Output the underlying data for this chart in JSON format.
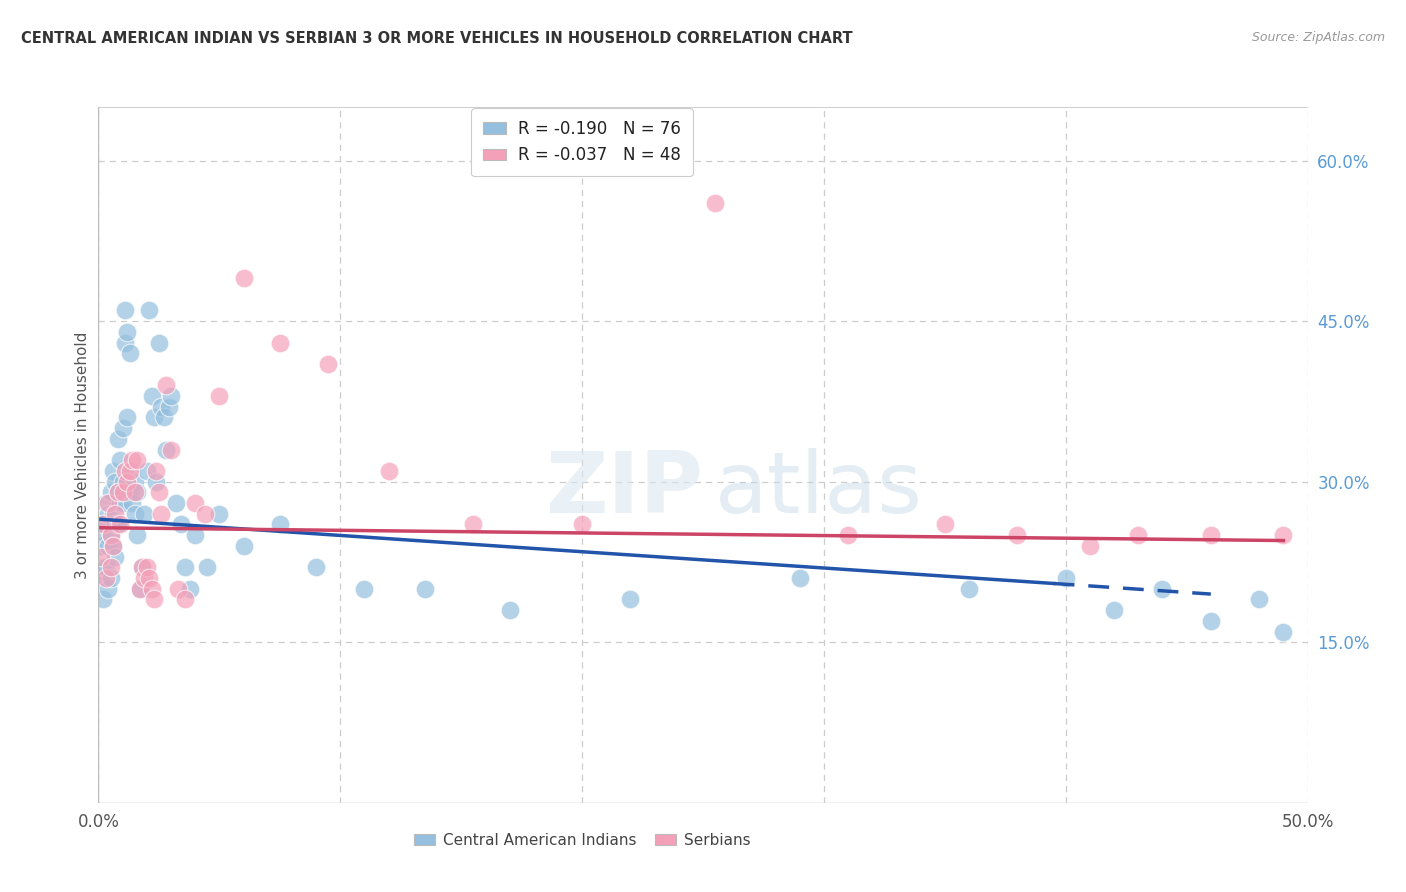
{
  "title": "CENTRAL AMERICAN INDIAN VS SERBIAN 3 OR MORE VEHICLES IN HOUSEHOLD CORRELATION CHART",
  "source": "Source: ZipAtlas.com",
  "ylabel": "3 or more Vehicles in Household",
  "yticks_right": [
    "60.0%",
    "45.0%",
    "30.0%",
    "15.0%"
  ],
  "yticks_right_vals": [
    0.6,
    0.45,
    0.3,
    0.15
  ],
  "legend_line1_r": "R = ",
  "legend_line1_rv": "-0.190",
  "legend_line1_n": "  N = ",
  "legend_line1_nv": "76",
  "legend_line2_r": "R = ",
  "legend_line2_rv": "-0.037",
  "legend_line2_n": "  N = ",
  "legend_line2_nv": "48",
  "legend_label1": "Central American Indians",
  "legend_label2": "Serbians",
  "blue_color": "#94bfde",
  "pink_color": "#f4a0b8",
  "line_blue": "#2255aa",
  "line_pink": "#cc4466",
  "xlim": [
    0.0,
    0.5
  ],
  "ylim": [
    0.0,
    0.65
  ],
  "xticks": [
    0.0,
    0.1,
    0.2,
    0.3,
    0.4,
    0.5
  ],
  "grid_color": "#cccccc",
  "bg_color": "#ffffff",
  "blue_scatter_x": [
    0.001,
    0.001,
    0.002,
    0.002,
    0.002,
    0.003,
    0.003,
    0.003,
    0.004,
    0.004,
    0.004,
    0.005,
    0.005,
    0.005,
    0.006,
    0.006,
    0.006,
    0.007,
    0.007,
    0.007,
    0.008,
    0.008,
    0.008,
    0.009,
    0.009,
    0.01,
    0.01,
    0.01,
    0.011,
    0.011,
    0.012,
    0.012,
    0.013,
    0.013,
    0.014,
    0.014,
    0.015,
    0.015,
    0.016,
    0.016,
    0.017,
    0.018,
    0.019,
    0.02,
    0.021,
    0.022,
    0.023,
    0.024,
    0.025,
    0.026,
    0.027,
    0.028,
    0.029,
    0.03,
    0.032,
    0.034,
    0.036,
    0.038,
    0.04,
    0.045,
    0.05,
    0.06,
    0.075,
    0.09,
    0.11,
    0.135,
    0.17,
    0.22,
    0.29,
    0.36,
    0.4,
    0.42,
    0.44,
    0.46,
    0.48,
    0.49
  ],
  "blue_scatter_y": [
    0.24,
    0.21,
    0.26,
    0.22,
    0.19,
    0.25,
    0.22,
    0.28,
    0.2,
    0.24,
    0.27,
    0.21,
    0.25,
    0.29,
    0.24,
    0.27,
    0.31,
    0.23,
    0.26,
    0.3,
    0.26,
    0.29,
    0.34,
    0.28,
    0.32,
    0.3,
    0.35,
    0.28,
    0.43,
    0.46,
    0.44,
    0.36,
    0.42,
    0.29,
    0.31,
    0.28,
    0.27,
    0.3,
    0.25,
    0.29,
    0.2,
    0.22,
    0.27,
    0.31,
    0.46,
    0.38,
    0.36,
    0.3,
    0.43,
    0.37,
    0.36,
    0.33,
    0.37,
    0.38,
    0.28,
    0.26,
    0.22,
    0.2,
    0.25,
    0.22,
    0.27,
    0.24,
    0.26,
    0.22,
    0.2,
    0.2,
    0.18,
    0.19,
    0.21,
    0.2,
    0.21,
    0.18,
    0.2,
    0.17,
    0.19,
    0.16
  ],
  "pink_scatter_x": [
    0.001,
    0.002,
    0.003,
    0.004,
    0.005,
    0.005,
    0.006,
    0.007,
    0.008,
    0.009,
    0.01,
    0.011,
    0.012,
    0.013,
    0.014,
    0.015,
    0.016,
    0.017,
    0.018,
    0.019,
    0.02,
    0.021,
    0.022,
    0.023,
    0.024,
    0.025,
    0.026,
    0.028,
    0.03,
    0.033,
    0.036,
    0.04,
    0.044,
    0.05,
    0.06,
    0.075,
    0.095,
    0.12,
    0.155,
    0.2,
    0.255,
    0.31,
    0.35,
    0.38,
    0.41,
    0.43,
    0.46,
    0.49
  ],
  "pink_scatter_y": [
    0.23,
    0.26,
    0.21,
    0.28,
    0.25,
    0.22,
    0.24,
    0.27,
    0.29,
    0.26,
    0.29,
    0.31,
    0.3,
    0.31,
    0.32,
    0.29,
    0.32,
    0.2,
    0.22,
    0.21,
    0.22,
    0.21,
    0.2,
    0.19,
    0.31,
    0.29,
    0.27,
    0.39,
    0.33,
    0.2,
    0.19,
    0.28,
    0.27,
    0.38,
    0.49,
    0.43,
    0.41,
    0.31,
    0.26,
    0.26,
    0.56,
    0.25,
    0.26,
    0.25,
    0.24,
    0.25,
    0.25,
    0.25
  ]
}
